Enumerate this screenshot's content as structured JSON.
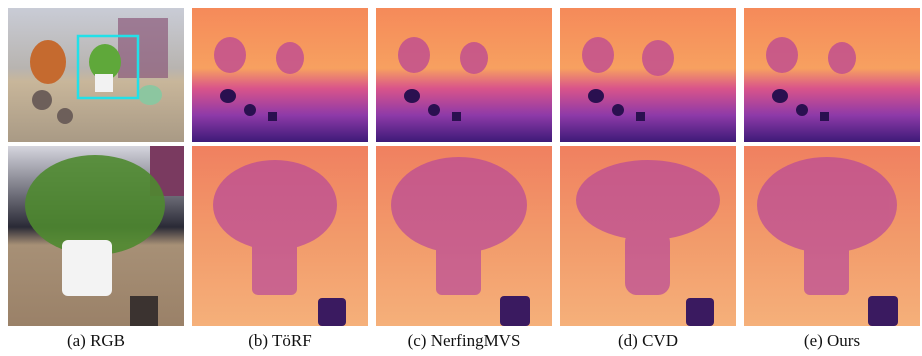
{
  "figure": {
    "panels": [
      {
        "caption": "(a) RGB"
      },
      {
        "caption": "(b) TöRF"
      },
      {
        "caption": "(c) NerfingMVS"
      },
      {
        "caption": "(d) CVD"
      },
      {
        "caption": "(e) Ours"
      }
    ]
  }
}
